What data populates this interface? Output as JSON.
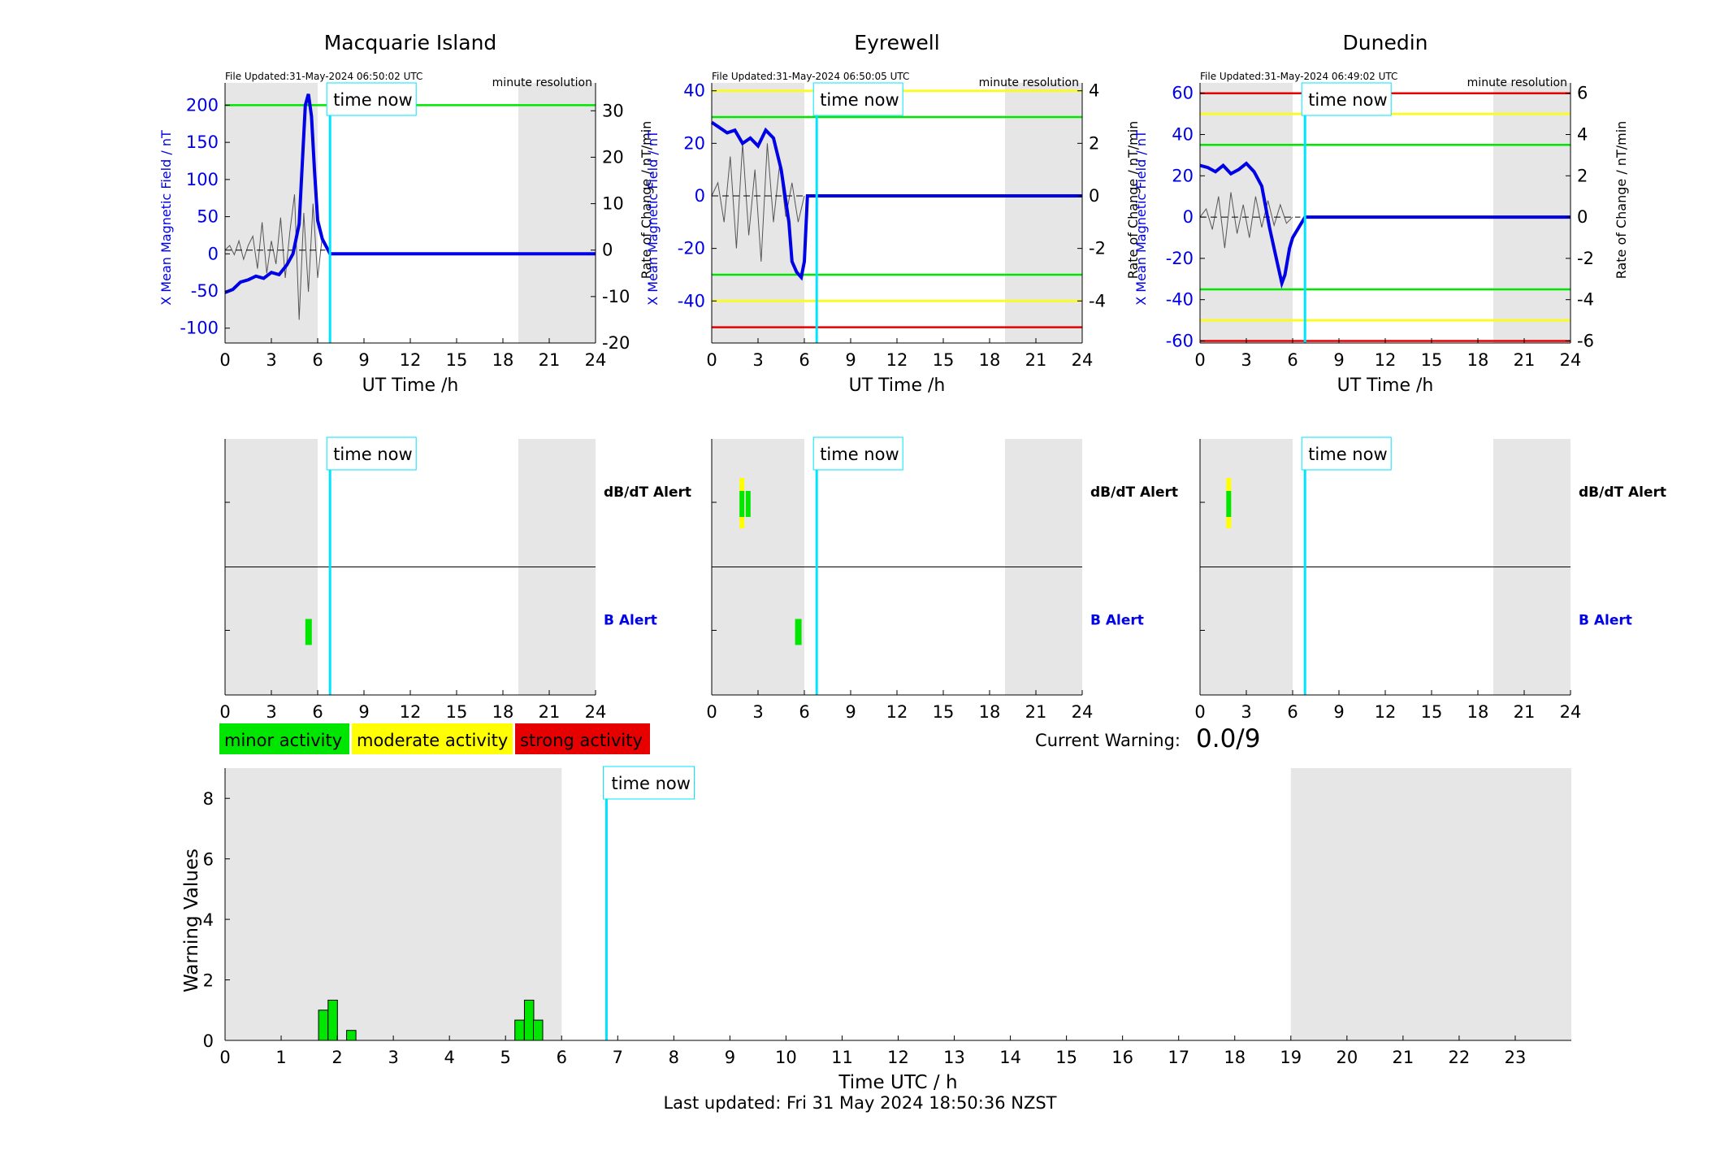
{
  "colors": {
    "shade": "#e6e6e6",
    "blue": "#0000e6",
    "cyan": "#00e5ff",
    "green": "#00e600",
    "yellow": "#ffff00",
    "red": "#e60000",
    "grey": "#555555"
  },
  "chart_data": [
    {
      "type": "line",
      "title": "Macquarie Island",
      "file_updated": "File Updated:31-May-2024 06:50:02 UTC",
      "resolution": "minute resolution",
      "xlabel": "UT Time /h",
      "ylabel_left": "X Mean Magnetic Field / nT",
      "ylabel_right": "Rate of Change / nT/min",
      "xlim": [
        0,
        24
      ],
      "ylim_left": [
        -120,
        230
      ],
      "ylim_right": [
        -20,
        36
      ],
      "yticks_left": [
        200,
        150,
        100,
        50,
        0,
        -50,
        -100
      ],
      "yticks_right": [
        30,
        20,
        10,
        0,
        -10,
        -20
      ],
      "xticks": [
        0,
        3,
        6,
        9,
        12,
        15,
        18,
        21,
        24
      ],
      "time_now": 6.8,
      "time_now_label": "time now",
      "night_shade": [
        [
          0,
          6
        ],
        [
          19,
          24
        ]
      ],
      "thresholds": [
        {
          "value": 200,
          "color": "green"
        }
      ],
      "series": [
        {
          "role": "field",
          "x": [
            0,
            0.5,
            1,
            1.5,
            2,
            2.5,
            3,
            3.5,
            4,
            4.4,
            4.8,
            5,
            5.2,
            5.4,
            5.6,
            5.8,
            6,
            6.3,
            6.6,
            6.8,
            24
          ],
          "y": [
            -52,
            -48,
            -38,
            -35,
            -30,
            -33,
            -25,
            -28,
            -15,
            0,
            40,
            120,
            200,
            215,
            185,
            110,
            45,
            20,
            8,
            0,
            0
          ]
        },
        {
          "role": "rate",
          "x": [
            0,
            0.3,
            0.6,
            0.9,
            1.2,
            1.5,
            1.8,
            2.1,
            2.4,
            2.7,
            3,
            3.3,
            3.6,
            3.9,
            4.2,
            4.5,
            4.8,
            5.1,
            5.4,
            5.7,
            6,
            6.3,
            6.6
          ],
          "y": [
            0,
            1,
            -1,
            2,
            -2,
            1,
            3,
            -4,
            6,
            -5,
            2,
            -3,
            7,
            -6,
            4,
            12,
            -15,
            8,
            -9,
            10,
            -6,
            3,
            0
          ]
        }
      ]
    },
    {
      "type": "line",
      "title": "Eyrewell",
      "file_updated": "File Updated:31-May-2024 06:50:05 UTC",
      "resolution": "minute resolution",
      "xlabel": "UT Time /h",
      "ylabel_left": "X Mean Magnetic Field / nT",
      "ylabel_right": "Rate of Change / nT/min",
      "xlim": [
        0,
        24
      ],
      "ylim_left": [
        -56,
        43
      ],
      "ylim_right": [
        -5.6,
        4.3
      ],
      "yticks_left": [
        40,
        20,
        0,
        -20,
        -40
      ],
      "yticks_right": [
        4,
        2,
        0,
        -2,
        -4
      ],
      "xticks": [
        0,
        3,
        6,
        9,
        12,
        15,
        18,
        21,
        24
      ],
      "time_now": 6.8,
      "time_now_label": "time now",
      "night_shade": [
        [
          0,
          6
        ],
        [
          19,
          24
        ]
      ],
      "thresholds": [
        {
          "value": 40,
          "color": "yellow"
        },
        {
          "value": 30,
          "color": "green"
        },
        {
          "value": -30,
          "color": "green"
        },
        {
          "value": -40,
          "color": "yellow"
        },
        {
          "value": -50,
          "color": "red"
        }
      ],
      "series": [
        {
          "role": "field",
          "x": [
            0,
            0.5,
            1,
            1.5,
            2,
            2.5,
            3,
            3.5,
            4,
            4.5,
            5,
            5.2,
            5.5,
            5.8,
            6,
            6.2,
            24
          ],
          "y": [
            28,
            26,
            24,
            25,
            20,
            22,
            19,
            25,
            22,
            10,
            -10,
            -25,
            -29,
            -31,
            -25,
            0,
            0
          ]
        },
        {
          "role": "rate",
          "x": [
            0,
            0.4,
            0.8,
            1.2,
            1.6,
            2,
            2.4,
            2.8,
            3.2,
            3.6,
            4,
            4.4,
            4.8,
            5.2,
            5.6,
            6
          ],
          "y": [
            0,
            0.5,
            -1,
            1.5,
            -2,
            2,
            -1.5,
            1,
            -2.5,
            2,
            -1,
            1.2,
            -0.8,
            0.5,
            -1,
            0
          ]
        }
      ]
    },
    {
      "type": "line",
      "title": "Dunedin",
      "file_updated": "File Updated:31-May-2024 06:49:02 UTC",
      "resolution": "minute resolution",
      "xlabel": "UT Time /h",
      "ylabel_left": "X Mean Magnetic Field / nT",
      "ylabel_right": "Rate of Change / nT/min",
      "xlim": [
        0,
        24
      ],
      "ylim_left": [
        -61,
        65
      ],
      "ylim_right": [
        -6.1,
        6.5
      ],
      "yticks_left": [
        60,
        40,
        20,
        0,
        -20,
        -40,
        -60
      ],
      "yticks_right": [
        6,
        4,
        2,
        0,
        -2,
        -4,
        -6
      ],
      "xticks": [
        0,
        3,
        6,
        9,
        12,
        15,
        18,
        21,
        24
      ],
      "time_now": 6.8,
      "time_now_label": "time now",
      "night_shade": [
        [
          0,
          6
        ],
        [
          19,
          24
        ]
      ],
      "thresholds": [
        {
          "value": 60,
          "color": "red"
        },
        {
          "value": 50,
          "color": "yellow"
        },
        {
          "value": 35,
          "color": "green"
        },
        {
          "value": -35,
          "color": "green"
        },
        {
          "value": -50,
          "color": "yellow"
        },
        {
          "value": -60,
          "color": "red"
        }
      ],
      "series": [
        {
          "role": "field",
          "x": [
            0,
            0.5,
            1,
            1.5,
            2,
            2.5,
            3,
            3.5,
            4,
            4.5,
            5,
            5.3,
            5.5,
            5.8,
            6,
            6.4,
            6.8,
            24
          ],
          "y": [
            25,
            24,
            22,
            25,
            21,
            23,
            26,
            22,
            15,
            -5,
            -22,
            -32,
            -28,
            -15,
            -10,
            -5,
            0,
            0
          ]
        },
        {
          "role": "rate",
          "x": [
            0,
            0.4,
            0.8,
            1.2,
            1.6,
            2,
            2.4,
            2.8,
            3.2,
            3.6,
            4,
            4.4,
            4.8,
            5.2,
            5.6,
            6
          ],
          "y": [
            0,
            0.4,
            -0.6,
            1,
            -1.5,
            1.2,
            -0.8,
            0.6,
            -1,
            1,
            -0.5,
            0.8,
            -0.4,
            0.6,
            -0.3,
            0
          ]
        }
      ]
    },
    {
      "type": "bar",
      "chart": "alerts",
      "station": "Macquarie Island",
      "xlim": [
        0,
        24
      ],
      "xticks": [
        0,
        3,
        6,
        9,
        12,
        15,
        18,
        21,
        24
      ],
      "time_now": 6.8,
      "time_now_label": "time now",
      "night_shade": [
        [
          0,
          6
        ],
        [
          19,
          24
        ]
      ],
      "dbdt_label": "dB/dT Alert",
      "b_label": "B Alert",
      "dbdt_alerts": [],
      "b_alerts": [
        {
          "start": 5.2,
          "end": 5.6,
          "level": "green"
        }
      ]
    },
    {
      "type": "bar",
      "chart": "alerts",
      "station": "Eyrewell",
      "xlim": [
        0,
        24
      ],
      "xticks": [
        0,
        3,
        6,
        9,
        12,
        15,
        18,
        21,
        24
      ],
      "time_now": 6.8,
      "time_now_label": "time now",
      "night_shade": [
        [
          0,
          6
        ],
        [
          19,
          24
        ]
      ],
      "dbdt_label": "dB/dT Alert",
      "b_label": "B Alert",
      "dbdt_alerts": [
        {
          "start": 1.8,
          "end": 2.1,
          "level": "yellow"
        },
        {
          "start": 1.8,
          "end": 2.1,
          "level": "green"
        },
        {
          "start": 2.2,
          "end": 2.5,
          "level": "green"
        }
      ],
      "b_alerts": [
        {
          "start": 5.4,
          "end": 5.8,
          "level": "green"
        }
      ]
    },
    {
      "type": "bar",
      "chart": "alerts",
      "station": "Dunedin",
      "xlim": [
        0,
        24
      ],
      "xticks": [
        0,
        3,
        6,
        9,
        12,
        15,
        18,
        21,
        24
      ],
      "time_now": 6.8,
      "time_now_label": "time now",
      "night_shade": [
        [
          0,
          6
        ],
        [
          19,
          24
        ]
      ],
      "dbdt_label": "dB/dT Alert",
      "b_label": "B Alert",
      "dbdt_alerts": [
        {
          "start": 1.7,
          "end": 2.0,
          "level": "yellow"
        },
        {
          "start": 1.7,
          "end": 2.0,
          "level": "green"
        }
      ],
      "b_alerts": []
    },
    {
      "type": "bar",
      "chart": "warning",
      "xlabel": "Time UTC / h",
      "ylabel": "Warning Values",
      "xlim": [
        0,
        24
      ],
      "ylim": [
        0,
        9
      ],
      "xticks": [
        0,
        1,
        2,
        3,
        4,
        5,
        6,
        7,
        8,
        9,
        10,
        11,
        12,
        13,
        14,
        15,
        16,
        17,
        18,
        19,
        20,
        21,
        22,
        23
      ],
      "yticks": [
        0,
        2,
        4,
        6,
        8
      ],
      "time_now": 6.8,
      "time_now_label": "time now",
      "night_shade": [
        [
          0,
          6
        ],
        [
          19,
          24
        ]
      ],
      "bars": [
        {
          "x": 1.75,
          "value": 1.0
        },
        {
          "x": 1.92,
          "value": 1.33
        },
        {
          "x": 2.25,
          "value": 0.33
        },
        {
          "x": 5.25,
          "value": 0.67
        },
        {
          "x": 5.42,
          "value": 1.33
        },
        {
          "x": 5.58,
          "value": 0.67
        }
      ]
    }
  ],
  "legend": [
    {
      "label": "minor activity",
      "color": "green"
    },
    {
      "label": "moderate activity",
      "color": "yellow"
    },
    {
      "label": "strong activity",
      "color": "red"
    }
  ],
  "current_warning": {
    "label": "Current Warning:",
    "value": "0.0/9"
  },
  "footer": "Last updated: Fri 31 May 2024 18:50:36 NZST"
}
